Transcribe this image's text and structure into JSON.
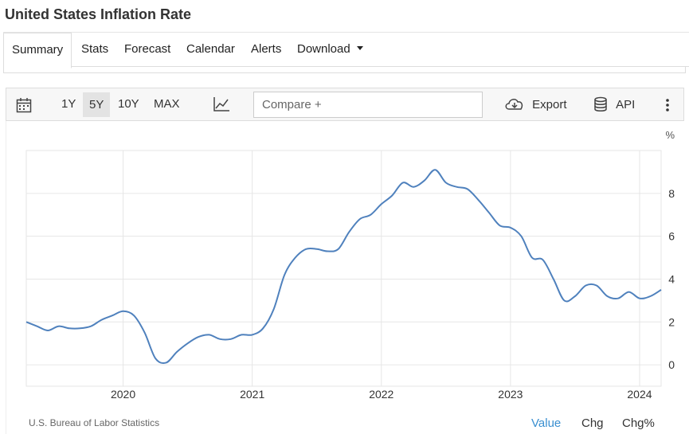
{
  "page_title": "United States Inflation Rate",
  "tabs": [
    {
      "label": "Summary",
      "active": true
    },
    {
      "label": "Stats"
    },
    {
      "label": "Forecast"
    },
    {
      "label": "Calendar"
    },
    {
      "label": "Alerts"
    },
    {
      "label": "Download"
    }
  ],
  "toolbar": {
    "ranges": [
      "1Y",
      "5Y",
      "10Y",
      "MAX"
    ],
    "active_range": "5Y",
    "compare_placeholder": "Compare +",
    "export_label": "Export",
    "api_label": "API"
  },
  "colors": {
    "line": "#4f81bd",
    "grid": "#e6e6e6",
    "accent": "#3a8fd0"
  },
  "chart_data": {
    "type": "line",
    "title": "",
    "xlabel": "",
    "ylabel": "%",
    "x_ticks": [
      "2020",
      "2021",
      "2022",
      "2023",
      "2024"
    ],
    "y_ticks": [
      "0",
      "2",
      "4",
      "6",
      "8"
    ],
    "ylim": [
      -1,
      10
    ],
    "xlim": [
      "2019-04",
      "2024-03"
    ],
    "grid": true,
    "series": [
      {
        "name": "",
        "x": [
          "2019-04",
          "2019-05",
          "2019-06",
          "2019-07",
          "2019-08",
          "2019-09",
          "2019-10",
          "2019-11",
          "2019-12",
          "2020-01",
          "2020-02",
          "2020-03",
          "2020-04",
          "2020-05",
          "2020-06",
          "2020-07",
          "2020-08",
          "2020-09",
          "2020-10",
          "2020-11",
          "2020-12",
          "2021-01",
          "2021-02",
          "2021-03",
          "2021-04",
          "2021-05",
          "2021-06",
          "2021-07",
          "2021-08",
          "2021-09",
          "2021-10",
          "2021-11",
          "2021-12",
          "2022-01",
          "2022-02",
          "2022-03",
          "2022-04",
          "2022-05",
          "2022-06",
          "2022-07",
          "2022-08",
          "2022-09",
          "2022-10",
          "2022-11",
          "2022-12",
          "2023-01",
          "2023-02",
          "2023-03",
          "2023-04",
          "2023-05",
          "2023-06",
          "2023-07",
          "2023-08",
          "2023-09",
          "2023-10",
          "2023-11",
          "2023-12",
          "2024-01",
          "2024-02",
          "2024-03"
        ],
        "values": [
          2.0,
          1.8,
          1.6,
          1.8,
          1.7,
          1.7,
          1.8,
          2.1,
          2.3,
          2.5,
          2.3,
          1.5,
          0.3,
          0.1,
          0.6,
          1.0,
          1.3,
          1.4,
          1.2,
          1.2,
          1.4,
          1.4,
          1.7,
          2.6,
          4.2,
          5.0,
          5.4,
          5.4,
          5.3,
          5.4,
          6.2,
          6.8,
          7.0,
          7.5,
          7.9,
          8.5,
          8.3,
          8.6,
          9.1,
          8.5,
          8.3,
          8.2,
          7.7,
          7.1,
          6.5,
          6.4,
          6.0,
          5.0,
          4.9,
          4.0,
          3.0,
          3.2,
          3.7,
          3.7,
          3.2,
          3.1,
          3.4,
          3.1,
          3.2,
          3.5
        ]
      }
    ]
  },
  "source": "U.S. Bureau of Labor Statistics",
  "footer_tabs": [
    {
      "label": "Value",
      "active": true
    },
    {
      "label": "Chg"
    },
    {
      "label": "Chg%"
    }
  ]
}
